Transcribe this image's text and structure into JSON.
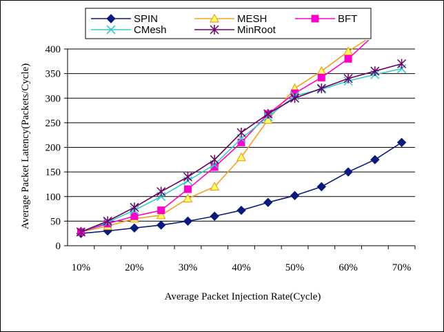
{
  "chart_data": {
    "type": "line",
    "title": "",
    "xlabel": "Average Packet Injection Rate(Cycle)",
    "ylabel": "Average Packet Latency(Packets/Cycle)",
    "x": [
      0.1,
      0.15,
      0.2,
      0.25,
      0.3,
      0.35,
      0.4,
      0.45,
      0.5,
      0.55,
      0.6,
      0.65,
      0.7
    ],
    "x_tick_labels": [
      "10%",
      "20%",
      "30%",
      "40%",
      "50%",
      "60%",
      "70%"
    ],
    "x_tick_values": [
      0.1,
      0.2,
      0.3,
      0.4,
      0.5,
      0.6,
      0.7
    ],
    "ylim": [
      0,
      400
    ],
    "y_ticks": [
      0,
      50,
      100,
      150,
      200,
      250,
      300,
      350,
      400
    ],
    "y_tick_labels": [
      "0",
      "50",
      "100",
      "150",
      "200",
      "250",
      "300",
      "350",
      "400"
    ],
    "grid": "horizontal",
    "legend_position": "top",
    "series": [
      {
        "name": "SPIN",
        "color": "#0a1a7a",
        "marker": "diamond",
        "values": [
          25,
          30,
          36,
          42,
          50,
          60,
          72,
          88,
          102,
          120,
          150,
          175,
          210
        ]
      },
      {
        "name": "MESH",
        "color": "#f0a020",
        "marker": "triangle",
        "values": [
          28,
          40,
          55,
          62,
          96,
          120,
          180,
          256,
          320,
          355,
          395,
          430,
          null
        ]
      },
      {
        "name": "BFT",
        "color": "#ff00cc",
        "marker": "square",
        "values": [
          28,
          45,
          60,
          72,
          115,
          160,
          210,
          268,
          310,
          342,
          380,
          430,
          null
        ]
      },
      {
        "name": "CMesh",
        "color": "#33cccc",
        "marker": "x",
        "values": [
          28,
          48,
          72,
          100,
          132,
          165,
          218,
          262,
          305,
          318,
          335,
          348,
          360
        ]
      },
      {
        "name": "MinRoot",
        "color": "#660066",
        "marker": "star",
        "values": [
          28,
          50,
          78,
          110,
          140,
          175,
          230,
          268,
          300,
          320,
          340,
          355,
          370
        ]
      }
    ]
  }
}
